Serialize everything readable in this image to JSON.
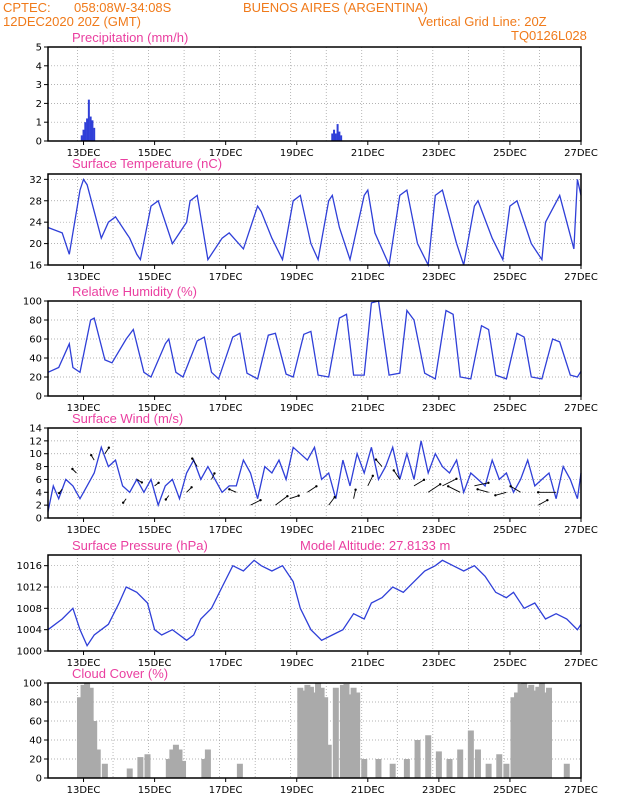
{
  "header": {
    "org": "CPTEC:",
    "coords": "058:08W-34:08S",
    "location": "BUENOS AIRES (ARGENTINA)",
    "datetime": "12DEC2020 20Z (GMT)",
    "grid_note": "Vertical Grid Line: 20Z",
    "code": "TQ0126L028"
  },
  "colors": {
    "header": "#f07a1a",
    "title": "#ea3fa0",
    "series": "#2f3fd8",
    "cloud": "#aaaaaa",
    "arrow": "#000000"
  },
  "chart_data": [
    {
      "id": "precip",
      "type": "bar",
      "title": "Precipitation (mm/h)",
      "x_start_day": 12.0,
      "x_end_day": 27.0,
      "xticks": [
        "13DEC",
        "15DEC",
        "17DEC",
        "19DEC",
        "21DEC",
        "23DEC",
        "25DEC",
        "27DEC"
      ],
      "ylim": [
        0,
        5
      ],
      "yticks": [
        0,
        1,
        2,
        3,
        4,
        5
      ],
      "x": [
        12.95,
        13.0,
        13.05,
        13.1,
        13.15,
        13.2,
        13.25,
        13.3,
        20.0,
        20.05,
        20.1,
        20.15,
        20.2,
        20.25
      ],
      "values": [
        0.3,
        0.6,
        1.0,
        1.2,
        2.2,
        1.3,
        1.1,
        0.7,
        0.4,
        0.6,
        0.4,
        0.9,
        0.5,
        0.3
      ]
    },
    {
      "id": "temp",
      "type": "line",
      "title": "Surface Temperature (nC)",
      "x_start_day": 12.0,
      "x_end_day": 27.0,
      "xticks": [
        "13DEC",
        "15DEC",
        "17DEC",
        "19DEC",
        "21DEC",
        "23DEC",
        "25DEC",
        "27DEC"
      ],
      "ylim": [
        16,
        33
      ],
      "yticks": [
        16,
        20,
        24,
        28,
        32
      ],
      "x": [
        12.0,
        12.4,
        12.6,
        12.9,
        13.0,
        13.1,
        13.5,
        13.7,
        13.9,
        14.3,
        14.5,
        14.6,
        14.9,
        15.1,
        15.5,
        15.9,
        16.0,
        16.2,
        16.5,
        16.9,
        17.1,
        17.5,
        17.9,
        18.0,
        18.3,
        18.6,
        18.9,
        19.1,
        19.4,
        19.6,
        19.9,
        20.0,
        20.2,
        20.5,
        20.9,
        21.0,
        21.2,
        21.6,
        21.9,
        22.1,
        22.4,
        22.7,
        22.9,
        23.1,
        23.5,
        23.7,
        24.0,
        24.1,
        24.5,
        24.8,
        25.0,
        25.2,
        25.6,
        25.9,
        26.0,
        26.4,
        26.8,
        26.9,
        27.0
      ],
      "values": [
        23,
        22,
        18,
        30,
        32,
        31,
        21,
        24,
        25,
        21,
        18,
        17,
        27,
        28,
        20,
        24,
        28,
        29,
        17,
        21,
        22,
        19,
        27,
        26,
        21,
        17,
        28,
        29,
        20,
        17,
        28,
        29,
        23,
        17,
        29,
        30,
        22,
        16,
        29,
        30,
        20,
        16,
        29,
        30,
        20,
        16,
        27,
        28,
        21,
        17,
        27,
        28,
        20,
        17,
        24,
        29,
        19,
        32,
        29
      ]
    },
    {
      "id": "rh",
      "type": "line",
      "title": "Relative Humidity (%)",
      "x_start_day": 12.0,
      "x_end_day": 27.0,
      "xticks": [
        "13DEC",
        "15DEC",
        "17DEC",
        "19DEC",
        "21DEC",
        "23DEC",
        "25DEC",
        "27DEC"
      ],
      "ylim": [
        0,
        100
      ],
      "yticks": [
        0,
        20,
        40,
        60,
        80,
        100
      ],
      "x": [
        12.0,
        12.3,
        12.6,
        12.7,
        12.9,
        13.2,
        13.3,
        13.6,
        13.8,
        14.2,
        14.4,
        14.7,
        14.9,
        15.3,
        15.4,
        15.6,
        15.8,
        16.2,
        16.4,
        16.6,
        16.8,
        17.2,
        17.4,
        17.6,
        17.9,
        18.2,
        18.4,
        18.7,
        18.9,
        19.2,
        19.4,
        19.6,
        19.9,
        20.2,
        20.4,
        20.6,
        20.9,
        21.1,
        21.3,
        21.6,
        21.9,
        22.1,
        22.3,
        22.6,
        22.9,
        23.2,
        23.4,
        23.6,
        23.9,
        24.2,
        24.4,
        24.6,
        24.9,
        25.2,
        25.4,
        25.6,
        25.9,
        26.2,
        26.4,
        26.7,
        26.9,
        27.0
      ],
      "values": [
        25,
        30,
        55,
        30,
        25,
        80,
        82,
        38,
        35,
        60,
        70,
        25,
        20,
        55,
        60,
        25,
        20,
        58,
        62,
        25,
        18,
        62,
        66,
        24,
        18,
        64,
        66,
        23,
        20,
        65,
        68,
        22,
        20,
        82,
        86,
        22,
        22,
        98,
        100,
        22,
        24,
        90,
        80,
        24,
        18,
        90,
        86,
        20,
        18,
        74,
        70,
        22,
        18,
        66,
        62,
        20,
        18,
        60,
        57,
        22,
        20,
        26
      ]
    },
    {
      "id": "wind",
      "type": "line",
      "title": "Surface Wind (m/s)",
      "x_start_day": 12.0,
      "x_end_day": 27.0,
      "xticks": [
        "13DEC",
        "15DEC",
        "17DEC",
        "19DEC",
        "21DEC",
        "23DEC",
        "25DEC",
        "27DEC"
      ],
      "ylim": [
        0,
        14
      ],
      "yticks": [
        0,
        2,
        4,
        6,
        8,
        10,
        12,
        14
      ],
      "x": [
        12.0,
        12.15,
        12.3,
        12.5,
        12.7,
        12.9,
        13.1,
        13.3,
        13.5,
        13.7,
        13.9,
        14.1,
        14.3,
        14.5,
        14.7,
        14.9,
        15.1,
        15.3,
        15.5,
        15.7,
        15.9,
        16.1,
        16.3,
        16.5,
        16.7,
        16.9,
        17.1,
        17.3,
        17.5,
        17.7,
        17.9,
        18.1,
        18.3,
        18.5,
        18.7,
        18.9,
        19.1,
        19.3,
        19.5,
        19.7,
        19.9,
        20.1,
        20.3,
        20.5,
        20.7,
        20.9,
        21.1,
        21.3,
        21.5,
        21.7,
        21.9,
        22.1,
        22.3,
        22.5,
        22.7,
        22.9,
        23.1,
        23.3,
        23.5,
        23.7,
        23.9,
        24.1,
        24.3,
        24.5,
        24.7,
        24.9,
        25.1,
        25.3,
        25.5,
        25.7,
        25.9,
        26.1,
        26.3,
        26.5,
        26.7,
        26.9,
        27.0
      ],
      "values": [
        1,
        5,
        3,
        6,
        5,
        3,
        5,
        7,
        11,
        8,
        9,
        5,
        4,
        6,
        4,
        6,
        2,
        5,
        6,
        3,
        7,
        9,
        6,
        8,
        6,
        4,
        5,
        5,
        9,
        7,
        3,
        8,
        7,
        9,
        6,
        11,
        10,
        9,
        11,
        6,
        7,
        3,
        9,
        5,
        10,
        7,
        11,
        6,
        8,
        11,
        6,
        10,
        6,
        12,
        7,
        10,
        8,
        7,
        9,
        4,
        7,
        6,
        5,
        9,
        6,
        7,
        4,
        6,
        9,
        5,
        6,
        7,
        3,
        8,
        6,
        3,
        7
      ]
    },
    {
      "id": "pressure",
      "type": "line",
      "title": "Surface Pressure (hPa)",
      "annotation": "Model Altitude: 27.8133 m",
      "x_start_day": 12.0,
      "x_end_day": 27.0,
      "xticks": [
        "13DEC",
        "15DEC",
        "17DEC",
        "19DEC",
        "21DEC",
        "23DEC",
        "25DEC",
        "27DEC"
      ],
      "ylim": [
        1000,
        1018
      ],
      "yticks": [
        1000,
        1004,
        1008,
        1012,
        1016
      ],
      "x": [
        12.0,
        12.4,
        12.7,
        12.9,
        13.1,
        13.3,
        13.7,
        14.0,
        14.2,
        14.5,
        14.8,
        15.0,
        15.2,
        15.5,
        15.9,
        16.1,
        16.3,
        16.6,
        16.9,
        17.2,
        17.5,
        17.8,
        18.0,
        18.3,
        18.6,
        18.9,
        19.1,
        19.4,
        19.7,
        20.0,
        20.3,
        20.6,
        20.9,
        21.1,
        21.4,
        21.7,
        22.0,
        22.3,
        22.6,
        22.9,
        23.1,
        23.4,
        23.7,
        24.0,
        24.3,
        24.6,
        24.9,
        25.1,
        25.4,
        25.7,
        26.0,
        26.3,
        26.6,
        26.9,
        27.0
      ],
      "values": [
        1004,
        1006,
        1008,
        1004,
        1001,
        1003,
        1005,
        1009,
        1012,
        1011,
        1009,
        1004,
        1003,
        1004,
        1002,
        1003,
        1006,
        1008,
        1012,
        1016,
        1015,
        1017,
        1016,
        1015,
        1016,
        1013,
        1008,
        1004,
        1002,
        1003,
        1004,
        1007,
        1006,
        1009,
        1010,
        1012,
        1011,
        1013,
        1015,
        1016,
        1017,
        1016,
        1015,
        1016,
        1014,
        1011,
        1010,
        1011,
        1008,
        1009,
        1006,
        1007,
        1006,
        1004,
        1005
      ]
    },
    {
      "id": "cloud",
      "type": "bar",
      "title": "Cloud Cover (%)",
      "x_start_day": 12.0,
      "x_end_day": 27.0,
      "xticks": [
        "13DEC",
        "15DEC",
        "17DEC",
        "19DEC",
        "21DEC",
        "23DEC",
        "25DEC",
        "27DEC"
      ],
      "ylim": [
        0,
        100
      ],
      "yticks": [
        0,
        20,
        40,
        60,
        80,
        100
      ],
      "x": [
        12.9,
        13.0,
        13.1,
        13.2,
        13.3,
        13.4,
        13.6,
        14.3,
        14.6,
        14.8,
        15.4,
        15.5,
        15.6,
        15.7,
        15.8,
        16.4,
        16.5,
        17.4,
        19.1,
        19.2,
        19.3,
        19.4,
        19.5,
        19.6,
        19.7,
        19.8,
        19.9,
        20.1,
        20.3,
        20.4,
        20.5,
        20.6,
        20.7,
        20.9,
        21.3,
        21.7,
        22.1,
        22.4,
        22.7,
        23.0,
        23.3,
        23.6,
        23.9,
        24.1,
        24.4,
        24.7,
        24.9,
        25.1,
        25.2,
        25.3,
        25.4,
        25.5,
        25.6,
        25.7,
        25.8,
        25.9,
        26.0,
        26.1,
        26.6
      ],
      "values": [
        85,
        98,
        100,
        95,
        60,
        30,
        15,
        10,
        22,
        25,
        20,
        30,
        35,
        30,
        18,
        20,
        30,
        15,
        95,
        92,
        98,
        96,
        90,
        100,
        95,
        85,
        35,
        95,
        98,
        99,
        88,
        95,
        90,
        20,
        20,
        15,
        20,
        40,
        45,
        28,
        20,
        30,
        50,
        30,
        15,
        25,
        15,
        85,
        90,
        99,
        100,
        95,
        98,
        92,
        96,
        100,
        90,
        95,
        15
      ]
    }
  ]
}
